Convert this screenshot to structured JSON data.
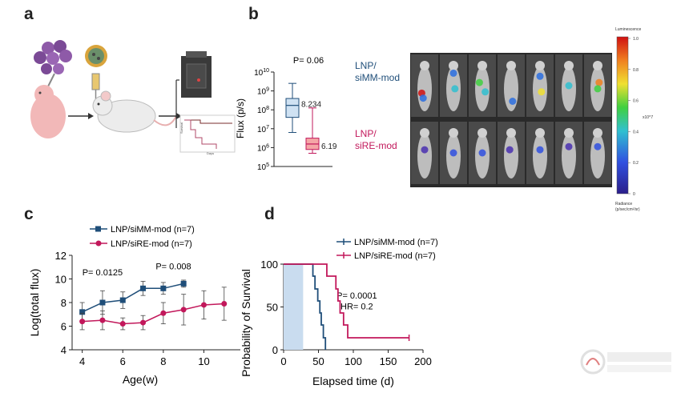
{
  "panels": {
    "a": "a",
    "b": "b",
    "c": "c",
    "d": "d"
  },
  "panel_a": {
    "mini_survival_ylabel": "Survival",
    "mini_survival_xlabel": "Days"
  },
  "panel_b": {
    "ylabel": "Flux (p/s)",
    "p_value": "P= 0.06",
    "yticks": [
      "10^5",
      "10^6",
      "10^7",
      "10^8",
      "10^9",
      "10^10"
    ],
    "median_labels": [
      "8.234",
      "6.190"
    ]
  },
  "imaging": {
    "row1_label": [
      "LNP/",
      "siMM-mod"
    ],
    "row2_label": [
      "LNP/",
      "siRE-mod"
    ],
    "colorbar_title": "Luminescence",
    "colorbar_ticks": [
      "1.0",
      "0.8",
      "0.6",
      "0.4",
      "0.2",
      "0"
    ],
    "colorbar_scale": "x10^7",
    "colorbar_unit_line1": "Radiance",
    "colorbar_unit_line2": "(p/sec/cm²/sr)"
  },
  "colors": {
    "blue": "#1f4e79",
    "red": "#c2185b",
    "box_blue_fill": "#cfe2f3",
    "box_red_fill": "#f4a6a6",
    "shade": "#c9dcef"
  },
  "chart_data": [
    {
      "type": "box",
      "ylabel": "Flux (p/s)",
      "yscale": "log10",
      "ylim": [
        100000,
        10000000000
      ],
      "annotation": "P= 0.06",
      "series": [
        {
          "name": "LNP/siMM-mod",
          "min": 6.8,
          "q1": 7.6,
          "median": 8.234,
          "q3": 8.6,
          "max": 9.4
        },
        {
          "name": "LNP/siRE-mod",
          "min": 5.7,
          "q1": 5.9,
          "median": 6.19,
          "q3": 6.5,
          "max": 8.1
        }
      ]
    },
    {
      "type": "line",
      "xlabel": "Age(w)",
      "ylabel": "Log(total flux)",
      "xlim": [
        3.5,
        11.8
      ],
      "ylim": [
        4,
        12
      ],
      "xticks": [
        4,
        6,
        8,
        10
      ],
      "yticks": [
        4,
        6,
        8,
        10,
        12
      ],
      "annotations": [
        {
          "text": "P= 0.0125",
          "x": 5
        },
        {
          "text": "P= 0.008",
          "x": 8.5
        }
      ],
      "series": [
        {
          "name": "LNP/siMM-mod (n=7)",
          "marker": "square",
          "x": [
            4,
            5,
            6,
            7,
            8,
            9
          ],
          "y": [
            7.2,
            8.0,
            8.2,
            9.2,
            9.2,
            9.6
          ],
          "err": [
            0.8,
            1.0,
            0.7,
            0.6,
            0.5,
            0.3
          ]
        },
        {
          "name": "LNP/siRE-mod (n=7)",
          "marker": "circle",
          "x": [
            4,
            5,
            6,
            7,
            8,
            9,
            10,
            11
          ],
          "y": [
            6.4,
            6.5,
            6.2,
            6.3,
            7.1,
            7.4,
            7.8,
            7.9
          ],
          "err": [
            0.7,
            0.8,
            0.5,
            0.6,
            0.9,
            1.3,
            1.2,
            1.4
          ]
        }
      ]
    },
    {
      "type": "step",
      "xlabel": "Elapsed time (d)",
      "ylabel": "Probability of Survival",
      "xlim": [
        0,
        200
      ],
      "ylim": [
        0,
        100
      ],
      "xticks": [
        0,
        50,
        100,
        150,
        200
      ],
      "yticks": [
        0,
        50,
        100
      ],
      "shaded_interval": [
        0,
        28
      ],
      "annotations": [
        "P= 0.0001",
        "HR= 0.2"
      ],
      "series": [
        {
          "name": "LNP/siMM-mod (n=7)",
          "steps": [
            [
              0,
              100
            ],
            [
              42,
              100
            ],
            [
              42,
              86
            ],
            [
              45,
              86
            ],
            [
              45,
              71
            ],
            [
              49,
              71
            ],
            [
              49,
              57
            ],
            [
              52,
              57
            ],
            [
              52,
              43
            ],
            [
              54,
              43
            ],
            [
              54,
              29
            ],
            [
              57,
              29
            ],
            [
              57,
              14
            ],
            [
              60,
              14
            ],
            [
              60,
              0
            ]
          ]
        },
        {
          "name": "LNP/siRE-mod (n=7)",
          "steps": [
            [
              0,
              100
            ],
            [
              62,
              100
            ],
            [
              62,
              86
            ],
            [
              75,
              86
            ],
            [
              75,
              71
            ],
            [
              78,
              71
            ],
            [
              78,
              57
            ],
            [
              81,
              57
            ],
            [
              81,
              43
            ],
            [
              86,
              43
            ],
            [
              86,
              29
            ],
            [
              92,
              29
            ],
            [
              92,
              14
            ],
            [
              180,
              14
            ]
          ]
        }
      ]
    }
  ]
}
